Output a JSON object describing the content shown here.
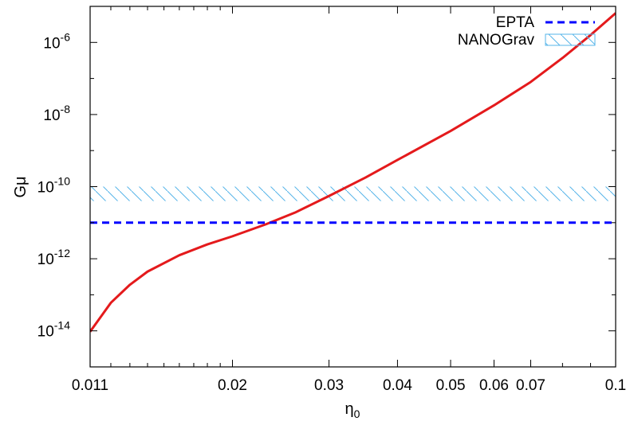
{
  "chart_data": {
    "type": "line",
    "title": "",
    "xlabel": {
      "base": "η",
      "sub": "0"
    },
    "ylabel": "Gμ",
    "xscale": "log",
    "yscale": "log",
    "xlim": [
      0.011,
      0.1
    ],
    "ylim": [
      1e-15,
      1e-05
    ],
    "x_ticks": [
      {
        "value": 0.011,
        "label": "0.011"
      },
      {
        "value": 0.02,
        "label": "0.02"
      },
      {
        "value": 0.03,
        "label": "0.03"
      },
      {
        "value": 0.04,
        "label": "0.04"
      },
      {
        "value": 0.05,
        "label": "0.05"
      },
      {
        "value": 0.06,
        "label": "0.06"
      },
      {
        "value": 0.07,
        "label": "0.07"
      },
      {
        "value": 0.1,
        "label": "0.1"
      }
    ],
    "y_ticks": [
      {
        "value": 1e-14,
        "base": "10",
        "exp": "-14"
      },
      {
        "value": 1e-12,
        "base": "10",
        "exp": "-12"
      },
      {
        "value": 1e-10,
        "base": "10",
        "exp": "-10"
      },
      {
        "value": 1e-08,
        "base": "10",
        "exp": "-8"
      },
      {
        "value": 1e-06,
        "base": "10",
        "exp": "-6"
      }
    ],
    "grid": false,
    "legend_position": "top-right",
    "series": [
      {
        "style": "solid",
        "color": "#e41a1c",
        "x": [
          0.011,
          0.012,
          0.013,
          0.014,
          0.016,
          0.018,
          0.02,
          0.023,
          0.026,
          0.03,
          0.035,
          0.04,
          0.05,
          0.06,
          0.07,
          0.08,
          0.09,
          0.1
        ],
        "y": [
          9.5e-15,
          6e-14,
          1.9e-13,
          4.4e-13,
          1.25e-12,
          2.5e-12,
          4.2e-12,
          9e-12,
          1.9e-11,
          5.5e-11,
          1.8e-10,
          5.5e-10,
          3.5e-09,
          1.8e-08,
          8e-08,
          3.7e-07,
          1.6e-06,
          6.5e-06
        ]
      },
      {
        "name": "EPTA",
        "style": "dashed",
        "color": "#0000ff",
        "x": [
          0.011,
          0.1
        ],
        "y": [
          1e-11,
          1e-11
        ]
      },
      {
        "name": "NANOGrav",
        "style": "hatched-band",
        "color": "#56b4e9",
        "x": [
          0.011,
          0.1
        ],
        "y_low": [
          4e-11,
          4e-11
        ],
        "y_high": [
          1e-10,
          1e-10
        ]
      }
    ]
  }
}
